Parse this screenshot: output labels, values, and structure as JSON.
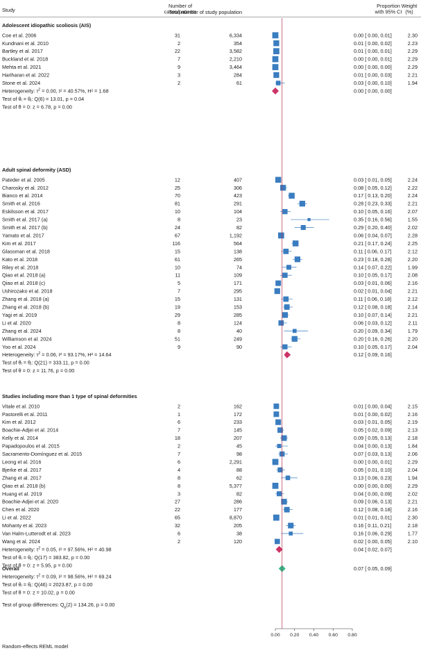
{
  "chart_data": {
    "type": "forest",
    "headers": {
      "study": "Study",
      "cases": [
        "Number of",
        "cases/patients"
      ],
      "total": "Total number of study population",
      "ci": [
        "Proportion",
        "with 95% CI"
      ],
      "weight": [
        "Weight",
        "(%)"
      ]
    },
    "axis": {
      "min": 0,
      "max": 0.8,
      "ticks": [
        0,
        0.2,
        0.4,
        0.6,
        0.8
      ],
      "tick_labels": [
        "0.00",
        "0.20",
        "0.40",
        "0.60",
        "0.80"
      ],
      "reference_line": 0.07
    },
    "footnote": "Random-effects REML model",
    "groups": [
      {
        "name": "Adolescent idiopathic scoliosis (AIS)",
        "studies": [
          {
            "label": "Coe et al. 2006",
            "cases": "31",
            "total": "6,334",
            "est": 0.0,
            "lo": 0.0,
            "hi": 0.01,
            "ci_text": "0.00 [ 0.00, 0.01]",
            "weight": "2.30"
          },
          {
            "label": "Kundnani et al. 2010",
            "cases": "2",
            "total": "354",
            "est": 0.01,
            "lo": 0.0,
            "hi": 0.02,
            "ci_text": "0.01 [ 0.00, 0.02]",
            "weight": "2.23"
          },
          {
            "label": "Bartley et al. 2017",
            "cases": "22",
            "total": "3,582",
            "est": 0.01,
            "lo": 0.0,
            "hi": 0.01,
            "ci_text": "0.01 [ 0.00, 0.01]",
            "weight": "2.29"
          },
          {
            "label": "Buckland et al. 2018",
            "cases": "7",
            "total": "2,210",
            "est": 0.0,
            "lo": 0.0,
            "hi": 0.01,
            "ci_text": "0.00 [ 0.00, 0.01]",
            "weight": "2.29"
          },
          {
            "label": "Mehta et al. 2021",
            "cases": "9",
            "total": "3,464",
            "est": 0.0,
            "lo": 0.0,
            "hi": 0.0,
            "ci_text": "0.00 [ 0.00, 0.00]",
            "weight": "2.29"
          },
          {
            "label": "Hariharan et al. 2022",
            "cases": "3",
            "total": "284",
            "est": 0.01,
            "lo": 0.0,
            "hi": 0.03,
            "ci_text": "0.01 [ 0.00, 0.03]",
            "weight": "2.21"
          },
          {
            "label": "Stone et al. 2024",
            "cases": "2",
            "total": "61",
            "est": 0.03,
            "lo": 0.0,
            "hi": 0.1,
            "ci_text": "0.03 [ 0.00, 0.10]",
            "weight": "1.94"
          }
        ],
        "pooled": {
          "est": 0.0,
          "lo": 0.0,
          "hi": 0.0,
          "ci_text": "0.00 [ 0.00, 0.00]"
        },
        "stats": [
          {
            "main": "Heterogeneity: τ",
            "sup": "2",
            "rest": " = 0.00, I² = 40.57%, H² = 1.68"
          },
          {
            "main": "Test of θᵢ = θⱼ: Q(6) = 13.01, p = 0.04"
          },
          {
            "main": "Test of θ = 0: z = 6.78, p = 0.00"
          }
        ]
      },
      {
        "name": "Adult spinal deformity (ASD)",
        "studies": [
          {
            "label": "Pateder et al. 2005",
            "cases": "12",
            "total": "407",
            "est": 0.03,
            "lo": 0.01,
            "hi": 0.05,
            "ci_text": "0.03 [ 0.01, 0.05]",
            "weight": "2.24"
          },
          {
            "label": "Charosky et al. 2012",
            "cases": "25",
            "total": "306",
            "est": 0.08,
            "lo": 0.05,
            "hi": 0.12,
            "ci_text": "0.08 [ 0.05, 0.12]",
            "weight": "2.22"
          },
          {
            "label": "Bianco et al. 2014",
            "cases": "70",
            "total": "423",
            "est": 0.17,
            "lo": 0.13,
            "hi": 0.2,
            "ci_text": "0.17 [ 0.13, 0.20]",
            "weight": "2.24"
          },
          {
            "label": "Smith et al. 2016",
            "cases": "81",
            "total": "291",
            "est": 0.28,
            "lo": 0.23,
            "hi": 0.33,
            "ci_text": "0.28 [ 0.23, 0.33]",
            "weight": "2.21"
          },
          {
            "label": "Eskilsson et al. 2017",
            "cases": "10",
            "total": "104",
            "est": 0.1,
            "lo": 0.05,
            "hi": 0.16,
            "ci_text": "0.10 [ 0.05, 0.16]",
            "weight": "2.07"
          },
          {
            "label": "Smith et al. 2017 (a)",
            "cases": "8",
            "total": "23",
            "est": 0.35,
            "lo": 0.16,
            "hi": 0.56,
            "ci_text": "0.35 [ 0.16, 0.56]",
            "weight": "1.55"
          },
          {
            "label": "Smith et al. 2017 (b)",
            "cases": "24",
            "total": "82",
            "est": 0.29,
            "lo": 0.2,
            "hi": 0.4,
            "ci_text": "0.29 [ 0.20, 0.40]",
            "weight": "2.02"
          },
          {
            "label": "Yamato et al. 2017",
            "cases": "67",
            "total": "1,192",
            "est": 0.06,
            "lo": 0.04,
            "hi": 0.07,
            "ci_text": "0.06 [ 0.04, 0.07]",
            "weight": "2.28"
          },
          {
            "label": "Kim et al. 2017",
            "cases": "116",
            "total": "564",
            "est": 0.21,
            "lo": 0.17,
            "hi": 0.24,
            "ci_text": "0.21 [ 0.17, 0.24]",
            "weight": "2.25"
          },
          {
            "label": "Glassman et al. 2018",
            "cases": "15",
            "total": "138",
            "est": 0.11,
            "lo": 0.06,
            "hi": 0.17,
            "ci_text": "0.11 [ 0.06, 0.17]",
            "weight": "2.12"
          },
          {
            "label": "Kato et al. 2018",
            "cases": "61",
            "total": "265",
            "est": 0.23,
            "lo": 0.18,
            "hi": 0.28,
            "ci_text": "0.23 [ 0.18, 0.28]",
            "weight": "2.20"
          },
          {
            "label": "Riley et al. 2018",
            "cases": "10",
            "total": "74",
            "est": 0.14,
            "lo": 0.07,
            "hi": 0.22,
            "ci_text": "0.14 [ 0.07, 0.22]",
            "weight": "1.99"
          },
          {
            "label": "Qiao et al. 2018 (a)",
            "cases": "11",
            "total": "109",
            "est": 0.1,
            "lo": 0.05,
            "hi": 0.17,
            "ci_text": "0.10 [ 0.05, 0.17]",
            "weight": "2.08"
          },
          {
            "label": "Qiao et al. 2018 (c)",
            "cases": "5",
            "total": "171",
            "est": 0.03,
            "lo": 0.01,
            "hi": 0.06,
            "ci_text": "0.03 [ 0.01, 0.06]",
            "weight": "2.16"
          },
          {
            "label": "Ushirozako et al. 2018",
            "cases": "7",
            "total": "295",
            "est": 0.02,
            "lo": 0.01,
            "hi": 0.04,
            "ci_text": "0.02 [ 0.01, 0.04]",
            "weight": "2.21"
          },
          {
            "label": "Zhang et al. 2018 (a)",
            "cases": "15",
            "total": "131",
            "est": 0.11,
            "lo": 0.06,
            "hi": 0.18,
            "ci_text": "0.11 [ 0.06, 0.18]",
            "weight": "2.12"
          },
          {
            "label": "Zhang et al. 2018 (b)",
            "cases": "19",
            "total": "153",
            "est": 0.12,
            "lo": 0.08,
            "hi": 0.18,
            "ci_text": "0.12 [ 0.08, 0.18]",
            "weight": "2.14"
          },
          {
            "label": "Yagi et al. 2019",
            "cases": "29",
            "total": "285",
            "est": 0.1,
            "lo": 0.07,
            "hi": 0.14,
            "ci_text": "0.10 [ 0.07, 0.14]",
            "weight": "2.21"
          },
          {
            "label": "Li et al. 2020",
            "cases": "8",
            "total": "124",
            "est": 0.06,
            "lo": 0.03,
            "hi": 0.12,
            "ci_text": "0.06 [ 0.03, 0.12]",
            "weight": "2.11"
          },
          {
            "label": "Zhang et al. 2024",
            "cases": "8",
            "total": "40",
            "est": 0.2,
            "lo": 0.09,
            "hi": 0.34,
            "ci_text": "0.20 [ 0.09, 0.34]",
            "weight": "1.79"
          },
          {
            "label": "Williamson et al. 2024",
            "cases": "51",
            "total": "249",
            "est": 0.2,
            "lo": 0.16,
            "hi": 0.26,
            "ci_text": "0.20 [ 0.16, 0.26]",
            "weight": "2.20"
          },
          {
            "label": "Yoo et al. 2024",
            "cases": "9",
            "total": "90",
            "est": 0.1,
            "lo": 0.05,
            "hi": 0.17,
            "ci_text": "0.10 [ 0.05, 0.17]",
            "weight": "2.04"
          }
        ],
        "pooled": {
          "est": 0.12,
          "lo": 0.09,
          "hi": 0.16,
          "ci_text": "0.12 [ 0.09, 0.16]"
        },
        "stats": [
          {
            "main": "Heterogeneity: τ",
            "sup": "2",
            "rest": " = 0.06, I² = 93.17%, H² = 14.64"
          },
          {
            "main": "Test of θᵢ = θⱼ: Q(21) = 333.11, p = 0.00"
          },
          {
            "main": "Test of θ = 0: z = 11.76, p = 0.00"
          }
        ]
      },
      {
        "name": "Studies including more than 1 type of spinal deformities",
        "studies": [
          {
            "label": "Vitale et al. 2010",
            "cases": "2",
            "total": "162",
            "est": 0.01,
            "lo": 0.0,
            "hi": 0.04,
            "ci_text": "0.01 [ 0.00, 0.04]",
            "weight": "2.15"
          },
          {
            "label": "Pastorelli et al. 2011",
            "cases": "1",
            "total": "172",
            "est": 0.01,
            "lo": 0.0,
            "hi": 0.02,
            "ci_text": "0.01 [ 0.00, 0.02]",
            "weight": "2.16"
          },
          {
            "label": "Kim et al. 2012",
            "cases": "6",
            "total": "233",
            "est": 0.03,
            "lo": 0.01,
            "hi": 0.05,
            "ci_text": "0.03 [ 0.01, 0.05]",
            "weight": "2.19"
          },
          {
            "label": "Boachie-Adjei et al. 2014",
            "cases": "7",
            "total": "145",
            "est": 0.05,
            "lo": 0.02,
            "hi": 0.09,
            "ci_text": "0.05 [ 0.02, 0.09]",
            "weight": "2.13"
          },
          {
            "label": "Kelly et al. 2014",
            "cases": "18",
            "total": "207",
            "est": 0.09,
            "lo": 0.05,
            "hi": 0.13,
            "ci_text": "0.09 [ 0.05, 0.13]",
            "weight": "2.18"
          },
          {
            "label": "Papadopoulos et al. 2015",
            "cases": "2",
            "total": "45",
            "est": 0.04,
            "lo": 0.0,
            "hi": 0.13,
            "ci_text": "0.04 [ 0.00, 0.13]",
            "weight": "1.84"
          },
          {
            "label": "Sacramento-Domínguez et al. 2015",
            "cases": "7",
            "total": "98",
            "est": 0.07,
            "lo": 0.03,
            "hi": 0.13,
            "ci_text": "0.07 [ 0.03, 0.13]",
            "weight": "2.06"
          },
          {
            "label": "Leong et al. 2016",
            "cases": "6",
            "total": "2,291",
            "est": 0.0,
            "lo": 0.0,
            "hi": 0.01,
            "ci_text": "0.00 [ 0.00, 0.01]",
            "weight": "2.29"
          },
          {
            "label": "Bjerke et al. 2017",
            "cases": "4",
            "total": "88",
            "est": 0.05,
            "lo": 0.01,
            "hi": 0.1,
            "ci_text": "0.05 [ 0.01, 0.10]",
            "weight": "2.04"
          },
          {
            "label": "Zhang et al. 2017",
            "cases": "8",
            "total": "62",
            "est": 0.13,
            "lo": 0.06,
            "hi": 0.23,
            "ci_text": "0.13 [ 0.06, 0.23]",
            "weight": "1.94"
          },
          {
            "label": "Qiao et al. 2018 (b)",
            "cases": "8",
            "total": "5,377",
            "est": 0.0,
            "lo": 0.0,
            "hi": 0.0,
            "ci_text": "0.00 [ 0.00, 0.00]",
            "weight": "2.29"
          },
          {
            "label": "Huang et al. 2019",
            "cases": "3",
            "total": "82",
            "est": 0.04,
            "lo": 0.0,
            "hi": 0.09,
            "ci_text": "0.04 [ 0.00, 0.09]",
            "weight": "2.02"
          },
          {
            "label": "Boachie-Adjei et al. 2020",
            "cases": "27",
            "total": "286",
            "est": 0.09,
            "lo": 0.06,
            "hi": 0.13,
            "ci_text": "0.09 [ 0.06, 0.13]",
            "weight": "2.21"
          },
          {
            "label": "Chen et al. 2020",
            "cases": "22",
            "total": "177",
            "est": 0.12,
            "lo": 0.08,
            "hi": 0.18,
            "ci_text": "0.12 [ 0.08, 0.18]",
            "weight": "2.16"
          },
          {
            "label": "Li et al. 2022",
            "cases": "65",
            "total": "8,870",
            "est": 0.01,
            "lo": 0.01,
            "hi": 0.01,
            "ci_text": "0.01 [ 0.01, 0.01]",
            "weight": "2.30"
          },
          {
            "label": "Mohanty et al. 2023",
            "cases": "32",
            "total": "205",
            "est": 0.16,
            "lo": 0.11,
            "hi": 0.21,
            "ci_text": "0.16 [ 0.11, 0.21]",
            "weight": "2.18"
          },
          {
            "label": "Van Halm-Lutterodt et al. 2023",
            "cases": "6",
            "total": "38",
            "est": 0.16,
            "lo": 0.06,
            "hi": 0.29,
            "ci_text": "0.16 [ 0.06, 0.29]",
            "weight": "1.77"
          },
          {
            "label": "Wang et al. 2024",
            "cases": "2",
            "total": "120",
            "est": 0.02,
            "lo": 0.0,
            "hi": 0.05,
            "ci_text": "0.02 [ 0.00, 0.05]",
            "weight": "2.10"
          }
        ],
        "pooled": {
          "est": 0.04,
          "lo": 0.02,
          "hi": 0.07,
          "ci_text": "0.04 [ 0.02, 0.07]"
        },
        "stats": [
          {
            "main": "Heterogeneity: τ",
            "sup": "2",
            "rest": " = 0.05, I² = 97.56%, H² = 40.98"
          },
          {
            "main": "Test of θᵢ = θⱼ: Q(17) = 383.82, p = 0.00"
          },
          {
            "main": "Test of θ = 0: z = 5.95, p = 0.00"
          }
        ]
      }
    ],
    "overall": {
      "name": "Overall",
      "est": 0.07,
      "lo": 0.05,
      "hi": 0.09,
      "ci_text": "0.07 [ 0.05, 0.09]",
      "stats": [
        {
          "main": "Heterogeneity: τ",
          "sup": "2",
          "rest": " = 0.09, I² = 98.56%, H² = 69.24"
        },
        {
          "main": "Test of θᵢ = θⱼ: Q(46) = 2023.87, p = 0.00"
        },
        {
          "main": "Test of θ = 0: z = 10.02, p = 0.00"
        }
      ],
      "group_test": {
        "main": "Test of group differences: Q",
        "sub": "b",
        "rest": "(2) = 134.26, p = 0.00"
      }
    },
    "colors": {
      "study_marker": "#3a7dc0",
      "subgroup_diamond": "#cc3366",
      "overall_diamond": "#33bb88",
      "ref_line": "#b03050",
      "text": "#1a1a1a"
    }
  }
}
